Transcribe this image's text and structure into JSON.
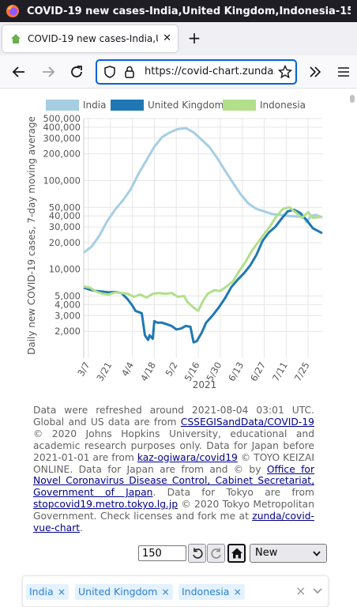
{
  "window": {
    "title": "COVID-19 new cases-India,United Kingdom,Indonesia-15"
  },
  "tab": {
    "title": "COVID-19 new cases-India,Unit",
    "close": "✕"
  },
  "newtab": {
    "label": "+"
  },
  "navbar": {
    "url": "https://covid-chart.zunda.ni"
  },
  "chart_data": {
    "type": "line",
    "title": "",
    "xlabel": "2021",
    "ylabel": "Daily new COVID-19 cases, 7-day moving average",
    "yscale": "log",
    "ylim": [
      1000,
      500000
    ],
    "grid": true,
    "legend_position": "top",
    "y_ticks": [
      "500,000",
      "400,000",
      "300,000",
      "200,000",
      "100,000",
      "50,000",
      "40,000",
      "30,000",
      "20,000",
      "10,000",
      "5,000",
      "4,000",
      "3,000",
      "2,000"
    ],
    "x_ticks": [
      "3/7",
      "3/21",
      "4/4",
      "4/18",
      "5/2",
      "5/16",
      "5/30",
      "6/13",
      "6/27",
      "7/11",
      "7/25"
    ],
    "x_start": "2021-03-04",
    "x_end": "2021-08-03",
    "series": [
      {
        "name": "India",
        "color": "#a6cee3",
        "points": [
          [
            "2021-03-04",
            15500
          ],
          [
            "2021-03-09",
            18000
          ],
          [
            "2021-03-14",
            24000
          ],
          [
            "2021-03-19",
            35000
          ],
          [
            "2021-03-24",
            47000
          ],
          [
            "2021-03-29",
            60000
          ],
          [
            "2021-04-03",
            80000
          ],
          [
            "2021-04-08",
            120000
          ],
          [
            "2021-04-13",
            170000
          ],
          [
            "2021-04-18",
            240000
          ],
          [
            "2021-04-23",
            310000
          ],
          [
            "2021-04-28",
            350000
          ],
          [
            "2021-05-03",
            380000
          ],
          [
            "2021-05-08",
            390000
          ],
          [
            "2021-05-13",
            350000
          ],
          [
            "2021-05-18",
            290000
          ],
          [
            "2021-05-23",
            240000
          ],
          [
            "2021-05-28",
            180000
          ],
          [
            "2021-06-02",
            130000
          ],
          [
            "2021-06-07",
            95000
          ],
          [
            "2021-06-12",
            70000
          ],
          [
            "2021-06-17",
            55000
          ],
          [
            "2021-06-22",
            48000
          ],
          [
            "2021-06-27",
            45000
          ],
          [
            "2021-07-02",
            42000
          ],
          [
            "2021-07-07",
            41000
          ],
          [
            "2021-07-12",
            40000
          ],
          [
            "2021-07-17",
            39500
          ],
          [
            "2021-07-22",
            39000
          ],
          [
            "2021-07-24",
            34000
          ],
          [
            "2021-07-27",
            40000
          ],
          [
            "2021-07-30",
            41000
          ],
          [
            "2021-08-03",
            38500
          ]
        ]
      },
      {
        "name": "United Kingdom",
        "color": "#1f78b4",
        "points": [
          [
            "2021-03-04",
            6200
          ],
          [
            "2021-03-08",
            5900
          ],
          [
            "2021-03-12",
            5700
          ],
          [
            "2021-03-16",
            5600
          ],
          [
            "2021-03-20",
            5500
          ],
          [
            "2021-03-24",
            5550
          ],
          [
            "2021-03-28",
            5400
          ],
          [
            "2021-04-01",
            4600
          ],
          [
            "2021-04-04",
            3900
          ],
          [
            "2021-04-06",
            3400
          ],
          [
            "2021-04-08",
            3300
          ],
          [
            "2021-04-10",
            3200
          ],
          [
            "2021-04-12",
            1800
          ],
          [
            "2021-04-14",
            1600
          ],
          [
            "2021-04-15",
            1800
          ],
          [
            "2021-04-17",
            1650
          ],
          [
            "2021-04-18",
            2600
          ],
          [
            "2021-04-20",
            2500
          ],
          [
            "2021-04-23",
            2500
          ],
          [
            "2021-04-26",
            2400
          ],
          [
            "2021-04-29",
            2300
          ],
          [
            "2021-05-02",
            2100
          ],
          [
            "2021-05-05",
            2150
          ],
          [
            "2021-05-08",
            2300
          ],
          [
            "2021-05-11",
            2250
          ],
          [
            "2021-05-13",
            1500
          ],
          [
            "2021-05-15",
            1550
          ],
          [
            "2021-05-18",
            1900
          ],
          [
            "2021-05-21",
            2500
          ],
          [
            "2021-05-25",
            3000
          ],
          [
            "2021-05-29",
            3700
          ],
          [
            "2021-06-02",
            4700
          ],
          [
            "2021-06-06",
            6300
          ],
          [
            "2021-06-10",
            7600
          ],
          [
            "2021-06-14",
            9000
          ],
          [
            "2021-06-18",
            11000
          ],
          [
            "2021-06-22",
            14500
          ],
          [
            "2021-06-26",
            21000
          ],
          [
            "2021-06-30",
            26000
          ],
          [
            "2021-07-04",
            30000
          ],
          [
            "2021-07-08",
            37000
          ],
          [
            "2021-07-12",
            45000
          ],
          [
            "2021-07-16",
            47000
          ],
          [
            "2021-07-20",
            43000
          ],
          [
            "2021-07-24",
            36000
          ],
          [
            "2021-07-28",
            29000
          ],
          [
            "2021-08-03",
            25500
          ]
        ]
      },
      {
        "name": "Indonesia",
        "color": "#b2df8a",
        "points": [
          [
            "2021-03-04",
            6400
          ],
          [
            "2021-03-08",
            6200
          ],
          [
            "2021-03-12",
            5600
          ],
          [
            "2021-03-16",
            5300
          ],
          [
            "2021-03-20",
            5200
          ],
          [
            "2021-03-24",
            5500
          ],
          [
            "2021-03-28",
            5400
          ],
          [
            "2021-04-01",
            5300
          ],
          [
            "2021-04-05",
            4900
          ],
          [
            "2021-04-09",
            5200
          ],
          [
            "2021-04-13",
            4800
          ],
          [
            "2021-04-17",
            5300
          ],
          [
            "2021-04-21",
            5400
          ],
          [
            "2021-04-25",
            5300
          ],
          [
            "2021-04-29",
            5400
          ],
          [
            "2021-05-03",
            4900
          ],
          [
            "2021-05-07",
            5000
          ],
          [
            "2021-05-09",
            4300
          ],
          [
            "2021-05-13",
            3700
          ],
          [
            "2021-05-16",
            3400
          ],
          [
            "2021-05-19",
            4400
          ],
          [
            "2021-05-22",
            5300
          ],
          [
            "2021-05-26",
            5800
          ],
          [
            "2021-05-30",
            5700
          ],
          [
            "2021-06-03",
            6400
          ],
          [
            "2021-06-07",
            7300
          ],
          [
            "2021-06-11",
            9500
          ],
          [
            "2021-06-15",
            12000
          ],
          [
            "2021-06-19",
            16000
          ],
          [
            "2021-06-23",
            20000
          ],
          [
            "2021-06-27",
            25000
          ],
          [
            "2021-07-01",
            31000
          ],
          [
            "2021-07-05",
            40000
          ],
          [
            "2021-07-09",
            48000
          ],
          [
            "2021-07-13",
            50000
          ],
          [
            "2021-07-17",
            44000
          ],
          [
            "2021-07-21",
            38000
          ],
          [
            "2021-07-25",
            44000
          ],
          [
            "2021-07-28",
            38000
          ],
          [
            "2021-08-03",
            39000
          ]
        ]
      }
    ]
  },
  "notice": {
    "p1": "Data were refreshed around 2021-08-04 03:01 UTC. Global and US data are from ",
    "link1": "CSSEGISandData/COVID-19",
    "p2": " © 2020 Johns Hopkins University, educational and academic research purposes only. Data for Japan before 2021-01-01 are from ",
    "link2": "kaz-ogiwara/covid19",
    "p3": " © TOYO KEIZAI ONLINE. Data for Japan are from and © by ",
    "link3": "Office for Novel Coronavirus Disease Control, Cabinet Secretariat, Government of Japan",
    "p4": ". Data for Tokyo are from ",
    "link4": "stopcovid19.metro.tokyo.lg.jp",
    "p5": " © 2020 Tokyo Metropolitan Government. Check licenses and fork me at ",
    "link5": "zunda/covid-vue-chart",
    "p6": "."
  },
  "controls": {
    "days_value": "150",
    "sort_selected": "New"
  },
  "tags": [
    {
      "label": "India",
      "remove": "×"
    },
    {
      "label": "United Kingdom",
      "remove": "×"
    },
    {
      "label": "Indonesia",
      "remove": "×"
    }
  ],
  "tagbox": {
    "clear": "×"
  }
}
